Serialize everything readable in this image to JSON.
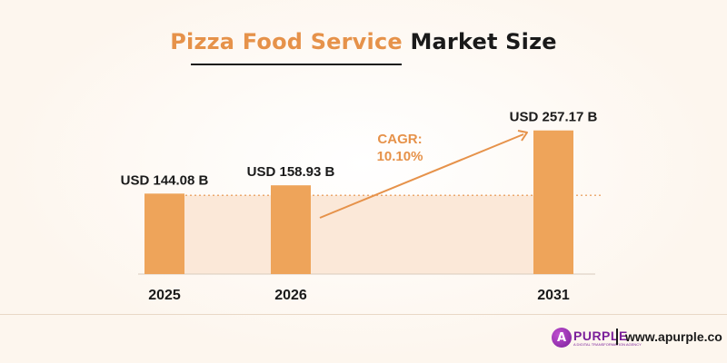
{
  "title": {
    "accent": "Pizza Food Service",
    "rest": "Market Size"
  },
  "colors": {
    "bar": "#eea45a",
    "accent": "#e6924a",
    "band": "#fbe8d8",
    "text": "#1a1a1a",
    "brand": "#7a1f9a"
  },
  "chart_data": {
    "type": "bar",
    "title": "Pizza Food Service Market Size",
    "categories": [
      "2025",
      "2026",
      "2031"
    ],
    "values": [
      144.08,
      158.93,
      257.17
    ],
    "data_labels": [
      "USD 144.08 B",
      "USD 158.93 B",
      "USD 257.17 B"
    ],
    "unit": "USD B",
    "annotation": {
      "line1": "CAGR:",
      "line2": "10.10%",
      "from": "2026",
      "to": "2031"
    },
    "grid": false,
    "legend": "none"
  },
  "footer": {
    "logo_mark": "A",
    "logo_word": "PURPLE",
    "logo_tagline": "A DIGITAL TRANSFORMATION AGENCY",
    "website": "www.apurple.co"
  }
}
